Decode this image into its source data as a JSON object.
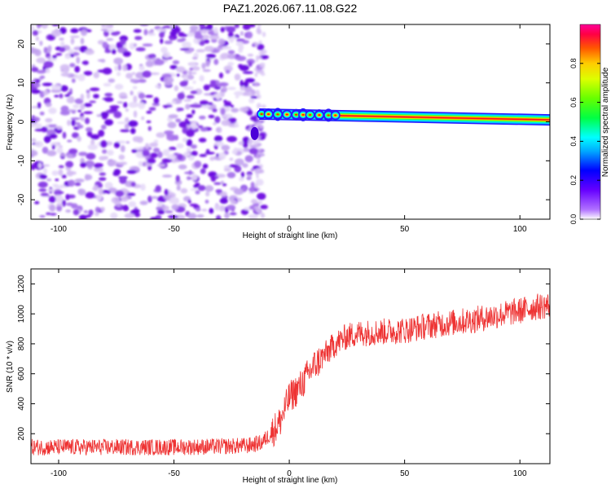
{
  "title": "PAZ1.2026.067.11.08.G22",
  "chart_data": [
    {
      "type": "heatmap",
      "title": "PAZ1.2026.067.11.08.G22",
      "xlabel": "Height of straight line (km)",
      "ylabel": "Frequency (Hz)",
      "xlim": [
        -112,
        113
      ],
      "ylim": [
        -25,
        25
      ],
      "xticks": [
        -100,
        -50,
        0,
        50,
        100
      ],
      "yticks": [
        -20,
        -10,
        0,
        10,
        20
      ],
      "xtick_labels": [
        "-100",
        "-50",
        "0",
        "50",
        "100"
      ],
      "ytick_labels": [
        "-20",
        "-10",
        "0",
        "10",
        "20"
      ],
      "noise_region_x": [
        -112,
        -13
      ],
      "signal_line": {
        "x_start": -13,
        "x_end": 113,
        "frequency_start": 2.0,
        "frequency_end": 0.5,
        "peak_amplitude": 0.9
      },
      "colorbar": {
        "label": "Normalized spectral amplitude",
        "range": [
          0,
          1
        ],
        "ticks": [
          0.0,
          0.2,
          0.4,
          0.6,
          0.8
        ],
        "tick_labels": [
          "0.0",
          "0.2",
          "0.4",
          "0.6",
          "0.8"
        ]
      }
    },
    {
      "type": "line",
      "xlabel": "Height of straight line (km)",
      "ylabel": "SNR (10 * v/v)",
      "xlim": [
        -112,
        113
      ],
      "ylim": [
        0,
        1300
      ],
      "xticks": [
        -100,
        -50,
        0,
        50,
        100
      ],
      "yticks": [
        200,
        400,
        600,
        800,
        1000,
        1200
      ],
      "xtick_labels": [
        "-100",
        "-50",
        "0",
        "50",
        "100"
      ],
      "ytick_labels": [
        "200",
        "400",
        "600",
        "800",
        "1000",
        "1200"
      ],
      "series": [
        {
          "name": "SNR",
          "color": "#ee3333",
          "x": [
            -112,
            -80,
            -50,
            -30,
            -18,
            -12,
            -8,
            -4,
            0,
            5,
            10,
            15,
            20,
            25,
            30,
            40,
            50,
            60,
            70,
            80,
            90,
            100,
            105,
            113
          ],
          "values": [
            110,
            110,
            110,
            115,
            120,
            140,
            200,
            280,
            440,
            520,
            640,
            720,
            800,
            850,
            870,
            880,
            890,
            920,
            940,
            960,
            990,
            1020,
            1040,
            1060
          ]
        }
      ]
    }
  ],
  "colors": {
    "signal_line": "#ee3333",
    "noise_purple": "#7a1fe0",
    "noise_light": "#d9c2f5"
  }
}
